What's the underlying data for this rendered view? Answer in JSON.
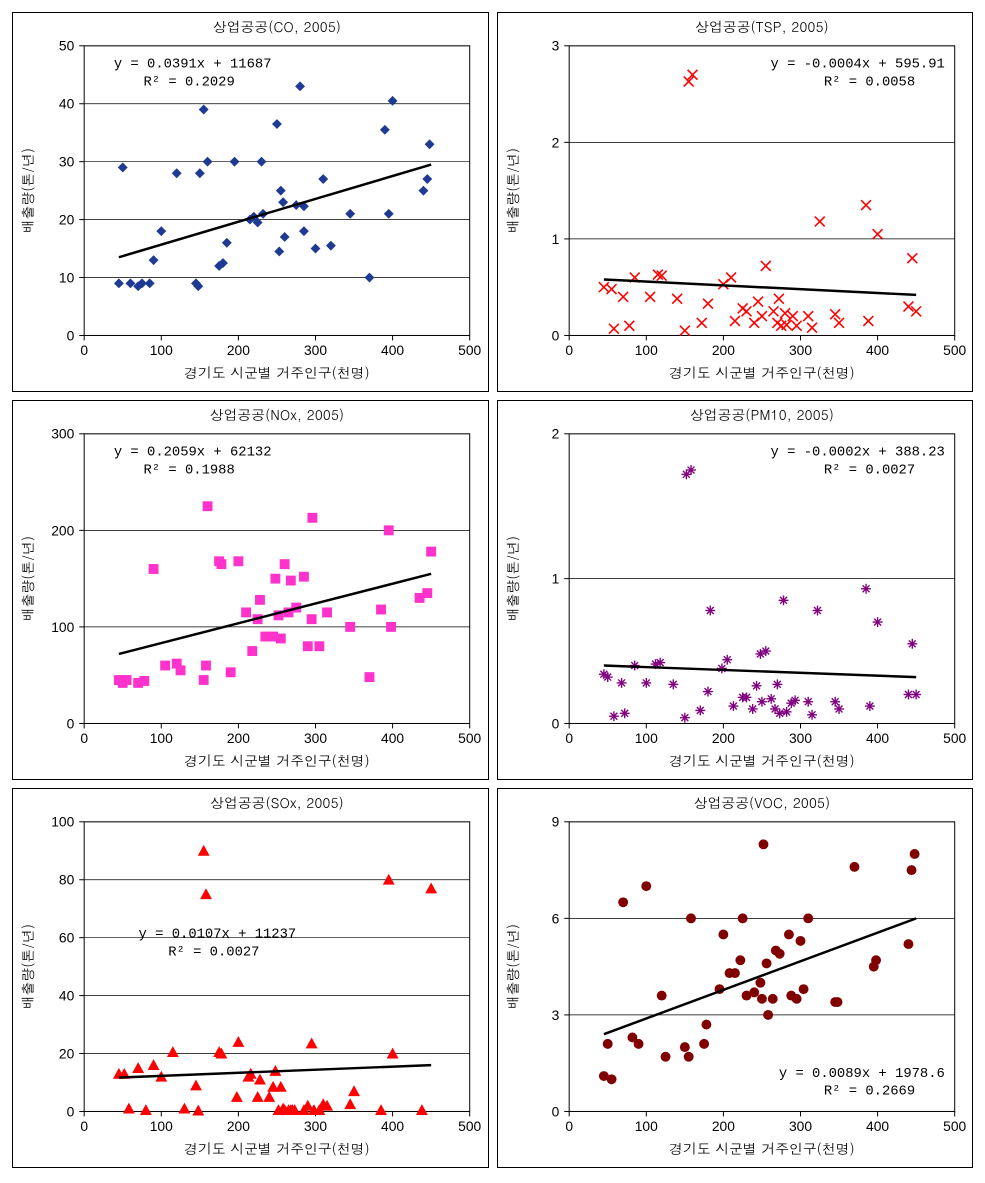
{
  "panels": [
    {
      "key": "co",
      "title": "상업공공(CO, 2005)",
      "xlabel": "경기도 시군별 거주인구(천명)",
      "ylabel": "배출량(톤/년)",
      "equation": "y = 0.0391x + 11687",
      "r2": "R² = 0.2029",
      "eq_pos": "tl",
      "marker": "diamond",
      "marker_color": "#1f3a93",
      "xlim": [
        0,
        500
      ],
      "ylim": [
        0,
        50
      ],
      "xticks": [
        0,
        100,
        200,
        300,
        400,
        500
      ],
      "yticks": [
        0,
        10,
        20,
        30,
        40,
        50
      ],
      "horizontal_grid": true,
      "trend": [
        [
          45,
          13.5
        ],
        [
          450,
          29.5
        ]
      ],
      "data": [
        [
          45,
          9
        ],
        [
          50,
          29
        ],
        [
          60,
          9
        ],
        [
          70,
          8.5
        ],
        [
          75,
          9
        ],
        [
          85,
          9
        ],
        [
          90,
          13
        ],
        [
          100,
          18
        ],
        [
          120,
          28
        ],
        [
          155,
          39
        ],
        [
          145,
          9
        ],
        [
          148,
          8.5
        ],
        [
          150,
          28
        ],
        [
          160,
          30
        ],
        [
          175,
          12
        ],
        [
          180,
          12.5
        ],
        [
          185,
          16
        ],
        [
          195,
          30
        ],
        [
          215,
          20
        ],
        [
          220,
          20.5
        ],
        [
          225,
          19.5
        ],
        [
          230,
          30
        ],
        [
          232,
          21
        ],
        [
          250,
          36.5
        ],
        [
          253,
          14.5
        ],
        [
          255,
          25
        ],
        [
          258,
          23
        ],
        [
          260,
          17
        ],
        [
          275,
          22.5
        ],
        [
          280,
          43
        ],
        [
          285,
          18
        ],
        [
          285,
          22.3
        ],
        [
          300,
          15
        ],
        [
          310,
          27
        ],
        [
          320,
          15.5
        ],
        [
          345,
          21
        ],
        [
          370,
          10
        ],
        [
          390,
          35.5
        ],
        [
          395,
          21
        ],
        [
          400,
          40.5
        ],
        [
          440,
          25
        ],
        [
          445,
          27
        ],
        [
          448,
          33
        ]
      ]
    },
    {
      "key": "tsp",
      "title": "상업공공(TSP, 2005)",
      "xlabel": "경기도 시군별 거주인구(천명)",
      "ylabel": "배출량(톤/년)",
      "equation": "y = -0.0004x + 595.91",
      "r2": "R² = 0.0058",
      "eq_pos": "tr",
      "marker": "x",
      "marker_color": "#ff0000",
      "xlim": [
        0,
        500
      ],
      "ylim": [
        0,
        3
      ],
      "xticks": [
        0,
        100,
        200,
        300,
        400,
        500
      ],
      "yticks": [
        0,
        1,
        2,
        3
      ],
      "horizontal_grid": true,
      "trend": [
        [
          45,
          0.58
        ],
        [
          450,
          0.42
        ]
      ],
      "data": [
        [
          45,
          0.5
        ],
        [
          55,
          0.48
        ],
        [
          58,
          0.07
        ],
        [
          70,
          0.4
        ],
        [
          78,
          0.1
        ],
        [
          85,
          0.6
        ],
        [
          105,
          0.4
        ],
        [
          115,
          0.63
        ],
        [
          120,
          0.62
        ],
        [
          140,
          0.38
        ],
        [
          150,
          0.05
        ],
        [
          155,
          2.63
        ],
        [
          160,
          2.7
        ],
        [
          172,
          0.13
        ],
        [
          180,
          0.33
        ],
        [
          200,
          0.53
        ],
        [
          210,
          0.6
        ],
        [
          215,
          0.15
        ],
        [
          225,
          0.28
        ],
        [
          230,
          0.25
        ],
        [
          240,
          0.13
        ],
        [
          245,
          0.35
        ],
        [
          250,
          0.2
        ],
        [
          255,
          0.72
        ],
        [
          265,
          0.25
        ],
        [
          270,
          0.13
        ],
        [
          272,
          0.38
        ],
        [
          275,
          0.1
        ],
        [
          280,
          0.23
        ],
        [
          282,
          0.11
        ],
        [
          290,
          0.2
        ],
        [
          295,
          0.1
        ],
        [
          310,
          0.2
        ],
        [
          315,
          0.08
        ],
        [
          325,
          1.18
        ],
        [
          345,
          0.22
        ],
        [
          350,
          0.13
        ],
        [
          385,
          1.35
        ],
        [
          388,
          0.15
        ],
        [
          400,
          1.05
        ],
        [
          440,
          0.3
        ],
        [
          445,
          0.8
        ],
        [
          450,
          0.25
        ]
      ]
    },
    {
      "key": "nox",
      "title": "상업공공(NOx, 2005)",
      "xlabel": "경기도 시군별 거주인구(천명)",
      "ylabel": "배출량(톤/년)",
      "equation": "y = 0.2059x + 62132",
      "r2": "R² = 0.1988",
      "eq_pos": "tl",
      "marker": "square",
      "marker_color": "#ff33cc",
      "xlim": [
        0,
        500
      ],
      "ylim": [
        0,
        300
      ],
      "xticks": [
        0,
        100,
        200,
        300,
        400,
        500
      ],
      "yticks": [
        0,
        100,
        200,
        300
      ],
      "horizontal_grid": true,
      "trend": [
        [
          45,
          72
        ],
        [
          450,
          155
        ]
      ],
      "data": [
        [
          45,
          45
        ],
        [
          50,
          42
        ],
        [
          55,
          45
        ],
        [
          70,
          42
        ],
        [
          78,
          44
        ],
        [
          90,
          160
        ],
        [
          105,
          60
        ],
        [
          120,
          62
        ],
        [
          125,
          55
        ],
        [
          155,
          45
        ],
        [
          158,
          60
        ],
        [
          160,
          225
        ],
        [
          175,
          168
        ],
        [
          178,
          165
        ],
        [
          190,
          53
        ],
        [
          200,
          168
        ],
        [
          210,
          115
        ],
        [
          218,
          75
        ],
        [
          225,
          108
        ],
        [
          228,
          128
        ],
        [
          235,
          90
        ],
        [
          245,
          90
        ],
        [
          248,
          150
        ],
        [
          252,
          112
        ],
        [
          255,
          88
        ],
        [
          260,
          165
        ],
        [
          265,
          115
        ],
        [
          268,
          148
        ],
        [
          275,
          120
        ],
        [
          285,
          152
        ],
        [
          290,
          80
        ],
        [
          295,
          108
        ],
        [
          296,
          213
        ],
        [
          305,
          80
        ],
        [
          315,
          115
        ],
        [
          345,
          100
        ],
        [
          370,
          48
        ],
        [
          385,
          118
        ],
        [
          395,
          200
        ],
        [
          398,
          100
        ],
        [
          435,
          130
        ],
        [
          445,
          135
        ],
        [
          450,
          178
        ]
      ]
    },
    {
      "key": "pm10",
      "title": "상업공공(PM10, 2005)",
      "xlabel": "경기도 시군별 거주인구(천명)",
      "ylabel": "배출량(톤/년)",
      "equation": "y = -0.0002x + 388.23",
      "r2": "R² = 0.0027",
      "eq_pos": "tr",
      "marker": "asterisk",
      "marker_color": "#800080",
      "xlim": [
        0,
        500
      ],
      "ylim": [
        0,
        2
      ],
      "xticks": [
        0,
        100,
        200,
        300,
        400,
        500
      ],
      "yticks": [
        0,
        1,
        2
      ],
      "horizontal_grid": true,
      "trend": [
        [
          45,
          0.4
        ],
        [
          450,
          0.32
        ]
      ],
      "data": [
        [
          45,
          0.34
        ],
        [
          50,
          0.32
        ],
        [
          58,
          0.05
        ],
        [
          68,
          0.28
        ],
        [
          72,
          0.07
        ],
        [
          85,
          0.4
        ],
        [
          100,
          0.28
        ],
        [
          112,
          0.41
        ],
        [
          118,
          0.42
        ],
        [
          135,
          0.27
        ],
        [
          150,
          0.04
        ],
        [
          152,
          1.72
        ],
        [
          158,
          1.75
        ],
        [
          170,
          0.09
        ],
        [
          180,
          0.22
        ],
        [
          183,
          0.78
        ],
        [
          198,
          0.38
        ],
        [
          205,
          0.44
        ],
        [
          213,
          0.12
        ],
        [
          225,
          0.18
        ],
        [
          230,
          0.18
        ],
        [
          238,
          0.1
        ],
        [
          243,
          0.26
        ],
        [
          248,
          0.48
        ],
        [
          250,
          0.15
        ],
        [
          255,
          0.5
        ],
        [
          262,
          0.17
        ],
        [
          267,
          0.1
        ],
        [
          270,
          0.27
        ],
        [
          273,
          0.07
        ],
        [
          278,
          0.85
        ],
        [
          282,
          0.08
        ],
        [
          288,
          0.14
        ],
        [
          293,
          0.16
        ],
        [
          310,
          0.15
        ],
        [
          315,
          0.06
        ],
        [
          322,
          0.78
        ],
        [
          345,
          0.15
        ],
        [
          350,
          0.1
        ],
        [
          385,
          0.93
        ],
        [
          390,
          0.12
        ],
        [
          400,
          0.7
        ],
        [
          440,
          0.2
        ],
        [
          445,
          0.55
        ],
        [
          450,
          0.2
        ]
      ]
    },
    {
      "key": "sox",
      "title": "상업공공(SOx, 2005)",
      "xlabel": "경기도 시군별 거주인구(천명)",
      "ylabel": "배출량(톤/년)",
      "equation": "y = 0.0107x + 11237",
      "r2": "R² = 0.0027",
      "eq_pos": "mid",
      "marker": "triangle",
      "marker_color": "#ff0000",
      "xlim": [
        0,
        500
      ],
      "ylim": [
        0,
        100
      ],
      "xticks": [
        0,
        100,
        200,
        300,
        400,
        500
      ],
      "yticks": [
        0,
        20,
        40,
        60,
        80,
        100
      ],
      "horizontal_grid": true,
      "trend": [
        [
          45,
          11.7
        ],
        [
          450,
          16
        ]
      ],
      "data": [
        [
          45,
          13
        ],
        [
          52,
          13
        ],
        [
          58,
          1
        ],
        [
          70,
          15
        ],
        [
          80,
          0.5
        ],
        [
          90,
          16
        ],
        [
          100,
          12
        ],
        [
          115,
          20.5
        ],
        [
          130,
          1
        ],
        [
          145,
          9
        ],
        [
          148,
          0.3
        ],
        [
          155,
          90
        ],
        [
          158,
          75
        ],
        [
          175,
          20.5
        ],
        [
          178,
          20
        ],
        [
          198,
          5
        ],
        [
          200,
          24
        ],
        [
          213,
          12
        ],
        [
          216,
          13
        ],
        [
          225,
          5
        ],
        [
          228,
          11
        ],
        [
          240,
          5
        ],
        [
          245,
          8.5
        ],
        [
          248,
          14
        ],
        [
          252,
          0.5
        ],
        [
          255,
          8.5
        ],
        [
          258,
          1
        ],
        [
          260,
          0.5
        ],
        [
          265,
          0.5
        ],
        [
          268,
          0.5
        ],
        [
          270,
          0.5
        ],
        [
          273,
          0.5
        ],
        [
          285,
          0.5
        ],
        [
          290,
          2
        ],
        [
          295,
          23.5
        ],
        [
          298,
          0.5
        ],
        [
          305,
          0.5
        ],
        [
          310,
          2.5
        ],
        [
          315,
          2
        ],
        [
          345,
          2.5
        ],
        [
          350,
          7
        ],
        [
          385,
          0.5
        ],
        [
          395,
          80
        ],
        [
          400,
          20
        ],
        [
          438,
          0.5
        ],
        [
          450,
          77
        ]
      ]
    },
    {
      "key": "voc",
      "title": "상업공공(VOC, 2005)",
      "xlabel": "경기도 시군별 거주인구(천명)",
      "ylabel": "배출량(톤/년)",
      "equation": "y = 0.0089x + 1978.6",
      "r2": "R² = 0.2669",
      "eq_pos": "br",
      "marker": "circle",
      "marker_color": "#800000",
      "xlim": [
        0,
        500
      ],
      "ylim": [
        0,
        9
      ],
      "xticks": [
        0,
        100,
        200,
        300,
        400,
        500
      ],
      "yticks": [
        0,
        3,
        6,
        9
      ],
      "horizontal_grid": true,
      "trend": [
        [
          45,
          2.4
        ],
        [
          450,
          6.0
        ]
      ],
      "data": [
        [
          45,
          1.1
        ],
        [
          50,
          2.1
        ],
        [
          55,
          1.0
        ],
        [
          70,
          6.5
        ],
        [
          82,
          2.3
        ],
        [
          90,
          2.1
        ],
        [
          100,
          7.0
        ],
        [
          120,
          3.6
        ],
        [
          125,
          1.7
        ],
        [
          150,
          2.0
        ],
        [
          155,
          1.7
        ],
        [
          158,
          6.0
        ],
        [
          175,
          2.1
        ],
        [
          178,
          2.7
        ],
        [
          195,
          3.8
        ],
        [
          200,
          5.5
        ],
        [
          208,
          4.3
        ],
        [
          215,
          4.3
        ],
        [
          222,
          4.7
        ],
        [
          225,
          6.0
        ],
        [
          230,
          3.6
        ],
        [
          240,
          3.7
        ],
        [
          248,
          4.0
        ],
        [
          250,
          3.5
        ],
        [
          252,
          8.3
        ],
        [
          256,
          4.6
        ],
        [
          258,
          3.0
        ],
        [
          264,
          3.5
        ],
        [
          268,
          5.0
        ],
        [
          273,
          4.9
        ],
        [
          285,
          5.5
        ],
        [
          288,
          3.6
        ],
        [
          295,
          3.5
        ],
        [
          300,
          5.3
        ],
        [
          304,
          3.8
        ],
        [
          310,
          6.0
        ],
        [
          345,
          3.4
        ],
        [
          348,
          3.4
        ],
        [
          370,
          7.6
        ],
        [
          395,
          4.5
        ],
        [
          398,
          4.7
        ],
        [
          440,
          5.2
        ],
        [
          444,
          7.5
        ],
        [
          448,
          8.0
        ]
      ]
    }
  ]
}
